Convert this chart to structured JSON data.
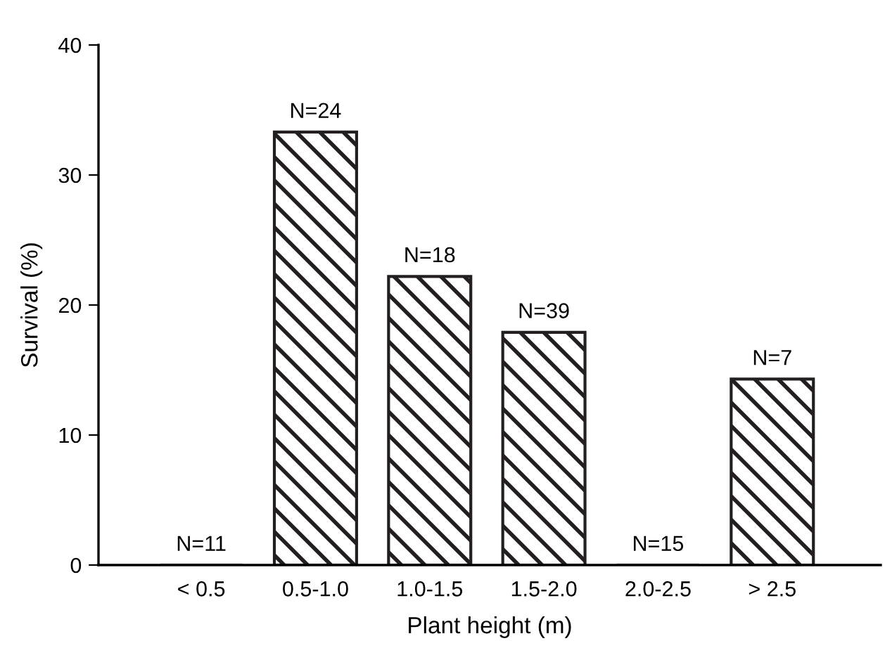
{
  "chart_data": {
    "type": "bar",
    "xlabel": "Plant height (m)",
    "ylabel": "Survival (%)",
    "categories": [
      "< 0.5",
      "0.5-1.0",
      "1.0-1.5",
      "1.5-2.0",
      "2.0-2.5",
      "> 2.5"
    ],
    "values": [
      0,
      33.3,
      22.2,
      17.9,
      0,
      14.3
    ],
    "color": "#231f20",
    "ylim": [
      0,
      40
    ],
    "yticks": [
      0,
      10,
      20,
      30,
      40
    ],
    "grid": false,
    "annotations": [
      {
        "text": "N=11",
        "x": "< 0.5",
        "y": 0
      },
      {
        "text": "N=24",
        "x": "0.5-1.0",
        "y": 33.3
      },
      {
        "text": "N=18",
        "x": "1.0-1.5",
        "y": 22.2
      },
      {
        "text": "N=39",
        "x": "1.5-2.0",
        "y": 17.9
      },
      {
        "text": "N=15",
        "x": "2.0-2.5",
        "y": 0
      },
      {
        "text": "N=7",
        "x": "> 2.5",
        "y": 14.3
      }
    ]
  }
}
